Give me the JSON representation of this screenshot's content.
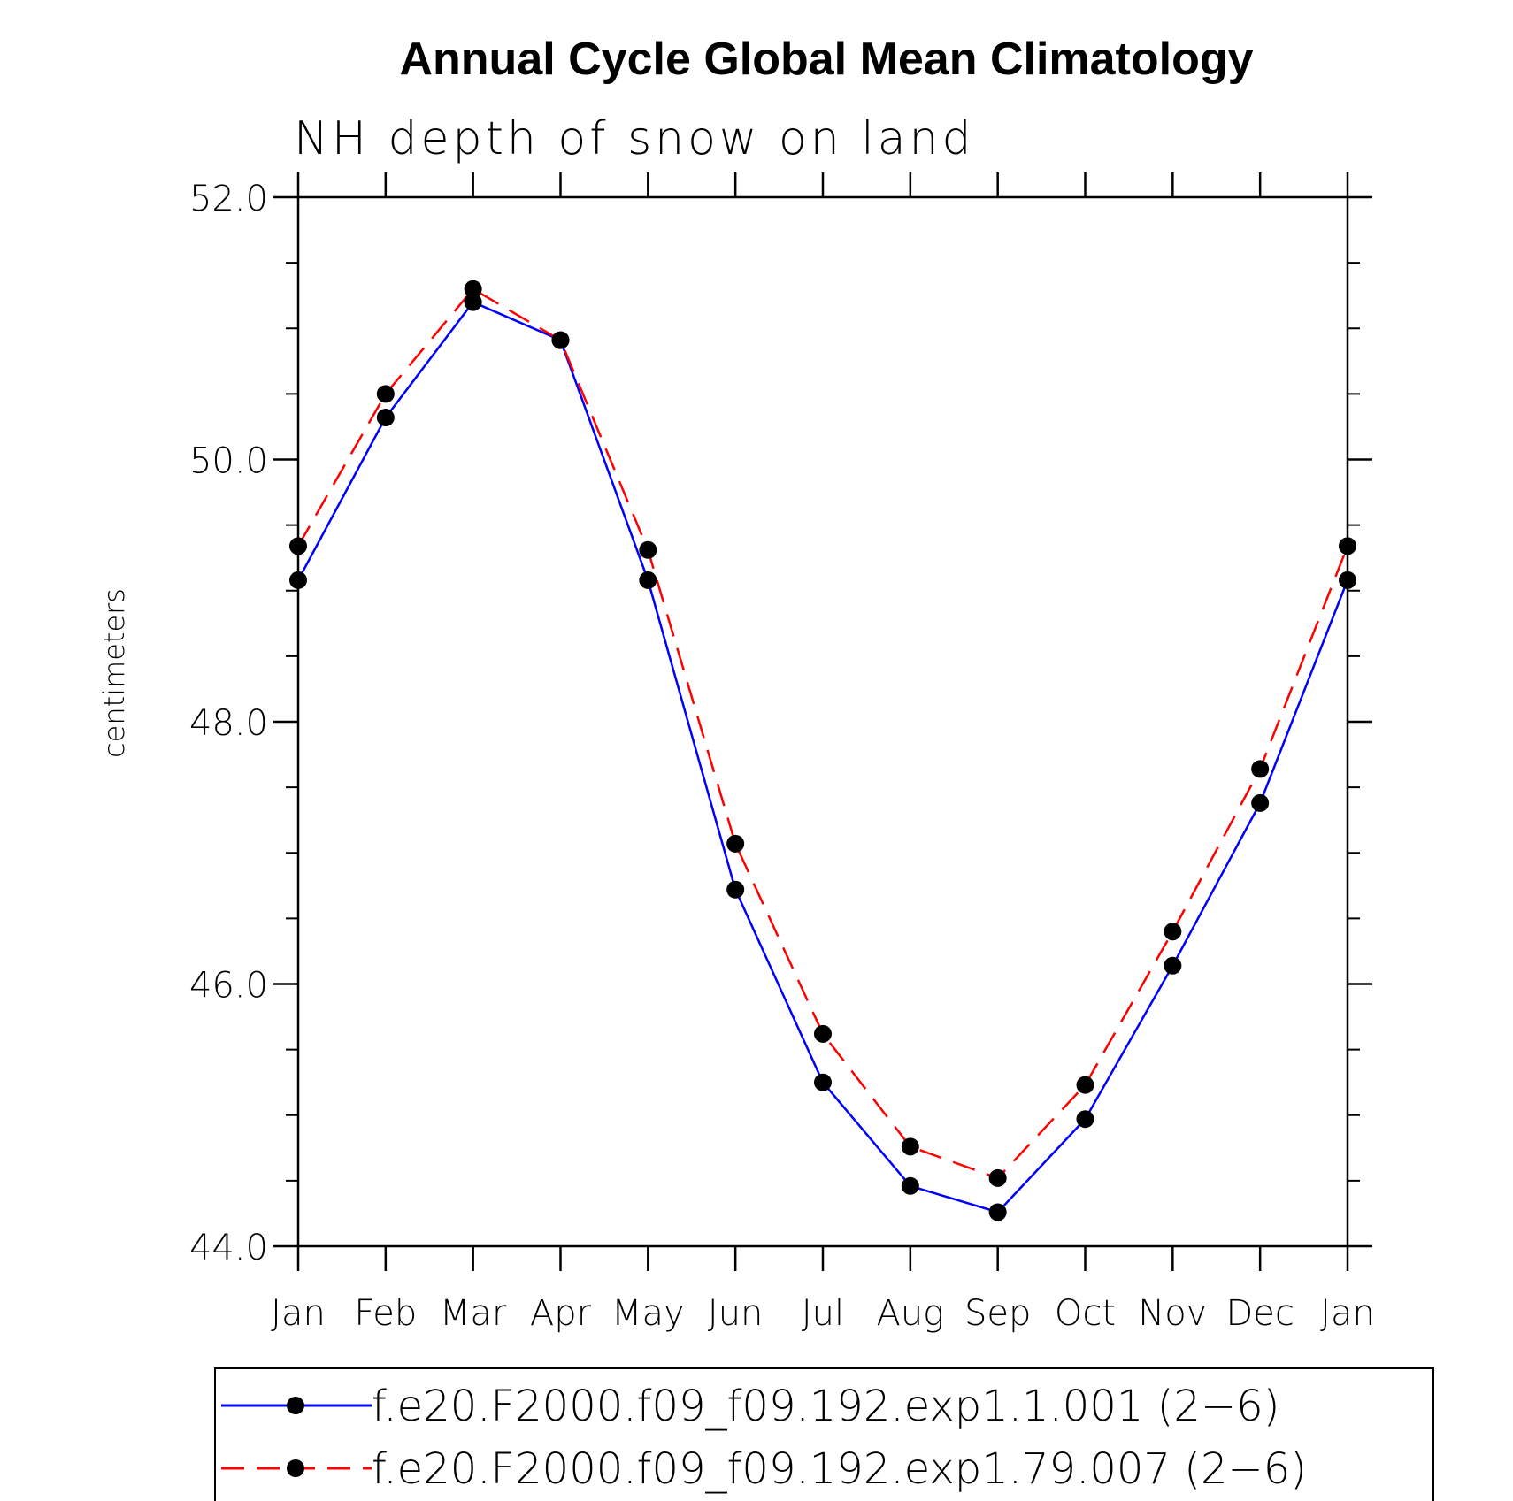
{
  "chart_data": {
    "type": "line",
    "title": "Annual Cycle Global Mean Climatology",
    "subtitle": "NH depth of snow on land",
    "ylabel": "centimeters",
    "xlabel": "",
    "categories": [
      "Jan",
      "Feb",
      "Mar",
      "Apr",
      "May",
      "Jun",
      "Jul",
      "Aug",
      "Sep",
      "Oct",
      "Nov",
      "Dec",
      "Jan"
    ],
    "ylim": [
      44.0,
      52.0
    ],
    "yticks": [
      44.0,
      46.0,
      48.0,
      50.0,
      52.0
    ],
    "ytick_labels": [
      "44.0",
      "46.0",
      "48.0",
      "50.0",
      "52.0"
    ],
    "yminor_step": 0.5,
    "legend_position": "bottom",
    "series": [
      {
        "name": "f.e20.F2000.f09_f09.192.exp1.1.001 (2−6)",
        "color": "#0000ff",
        "style": "solid",
        "values": [
          49.08,
          50.32,
          51.2,
          50.91,
          49.08,
          46.72,
          45.25,
          44.46,
          44.26,
          44.97,
          46.14,
          47.38,
          49.08
        ]
      },
      {
        "name": "f.e20.F2000.f09_f09.192.exp1.79.007 (2−6)",
        "color": "#ff0000",
        "style": "dashed",
        "values": [
          49.34,
          50.5,
          51.3,
          50.91,
          49.31,
          47.07,
          45.62,
          44.76,
          44.52,
          45.23,
          46.4,
          47.64,
          49.34
        ]
      }
    ],
    "marker_color": "#000000"
  }
}
